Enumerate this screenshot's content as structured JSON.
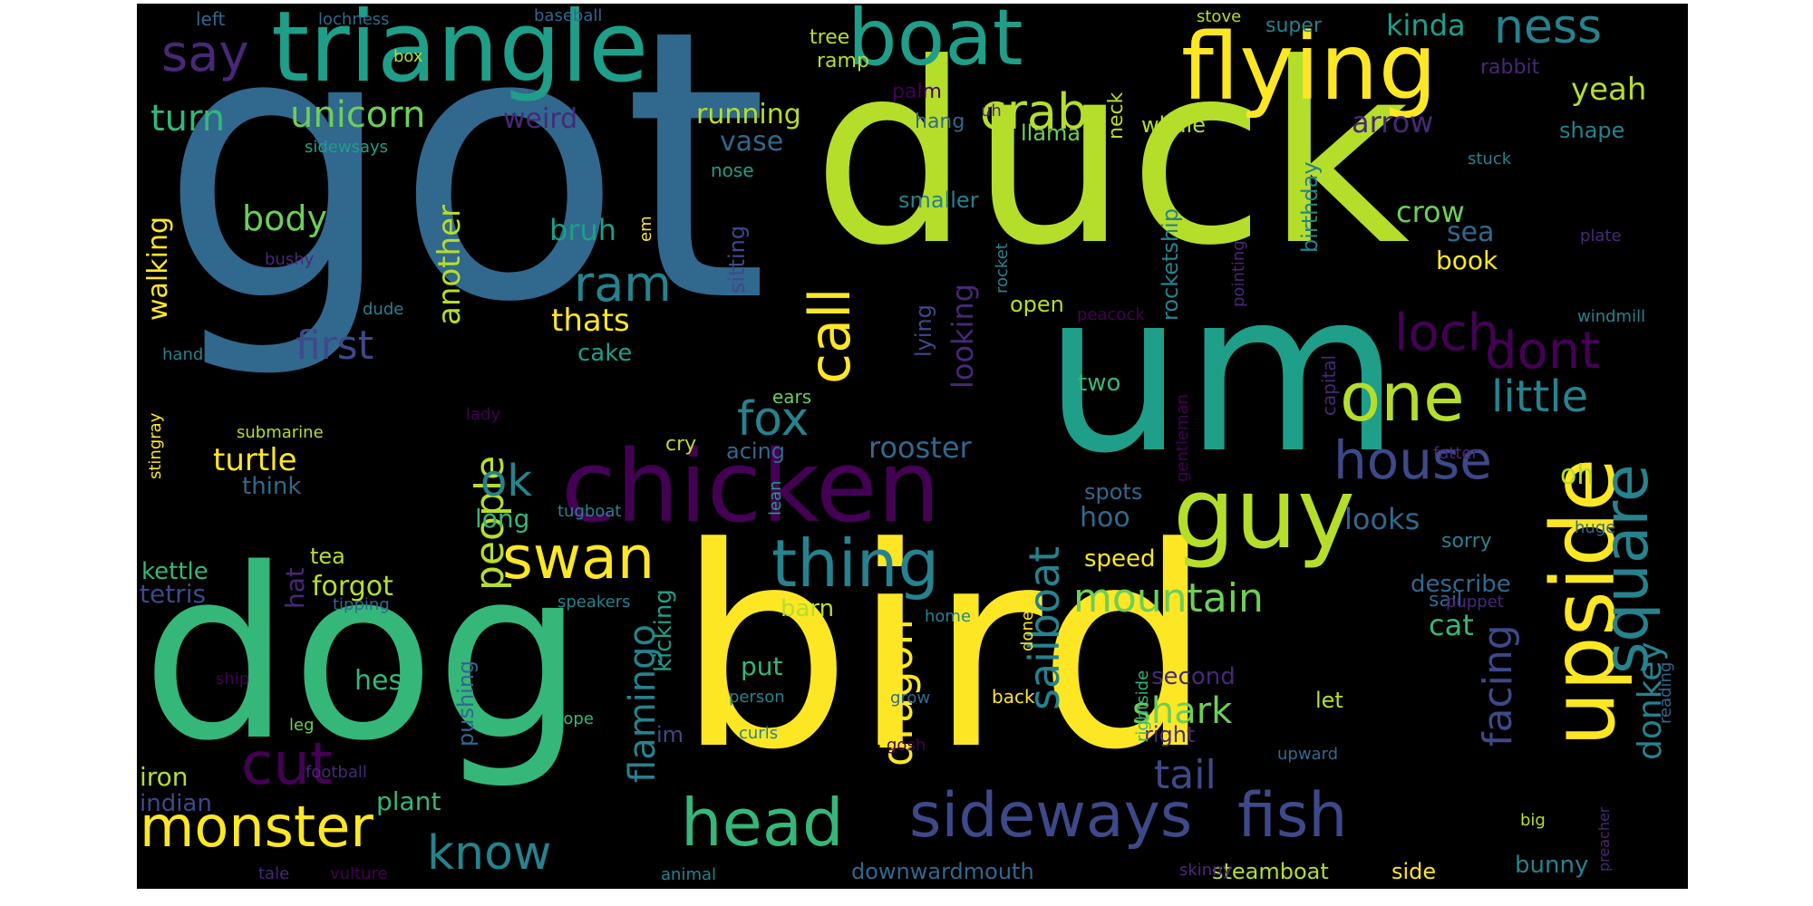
{
  "word_cloud": {
    "background": "#000000",
    "palette": {
      "v1": "#440154",
      "v2": "#482878",
      "v3": "#3e4989",
      "v4": "#31688e",
      "v5": "#26828e",
      "v6": "#1f9e89",
      "v7": "#35b779",
      "v8": "#6ece58",
      "v9": "#b5de2b",
      "v10": "#fde725"
    },
    "words": [
      {
        "text": "got",
        "color": "v4"
      },
      {
        "text": "duck",
        "color": "v9"
      },
      {
        "text": "bird",
        "color": "v10"
      },
      {
        "text": "dog",
        "color": "v7"
      },
      {
        "text": "um",
        "color": "v6"
      },
      {
        "text": "triangle",
        "color": "v6"
      },
      {
        "text": "chicken",
        "color": "v1"
      },
      {
        "text": "flying",
        "color": "v10"
      },
      {
        "text": "upside",
        "color": "v10"
      },
      {
        "text": "boat",
        "color": "v6"
      },
      {
        "text": "guy",
        "color": "v9"
      },
      {
        "text": "sideways",
        "color": "v3"
      },
      {
        "text": "fish",
        "color": "v3"
      },
      {
        "text": "head",
        "color": "v7"
      },
      {
        "text": "monster",
        "color": "v10"
      },
      {
        "text": "swan",
        "color": "v10"
      },
      {
        "text": "thing",
        "color": "v5"
      },
      {
        "text": "cut",
        "color": "v1"
      },
      {
        "text": "square",
        "color": "v5"
      },
      {
        "text": "one",
        "color": "v9"
      },
      {
        "text": "house",
        "color": "v3"
      },
      {
        "text": "call",
        "color": "v10"
      },
      {
        "text": "fox",
        "color": "v5"
      },
      {
        "text": "ram",
        "color": "v5"
      },
      {
        "text": "say",
        "color": "v2"
      },
      {
        "text": "crab",
        "color": "v9"
      },
      {
        "text": "ness",
        "color": "v5"
      },
      {
        "text": "loch",
        "color": "v1"
      },
      {
        "text": "dont",
        "color": "v1"
      },
      {
        "text": "little",
        "color": "v5"
      },
      {
        "text": "unicorn",
        "color": "v8"
      },
      {
        "text": "turn",
        "color": "v7"
      },
      {
        "text": "first",
        "color": "v3"
      },
      {
        "text": "know",
        "color": "v5"
      },
      {
        "text": "mountain",
        "color": "v8"
      },
      {
        "text": "sailboat",
        "color": "v5"
      },
      {
        "text": "dragon",
        "color": "v10"
      },
      {
        "text": "flamingo",
        "color": "v5"
      },
      {
        "text": "people",
        "color": "v9"
      },
      {
        "text": "tail",
        "color": "v3"
      },
      {
        "text": "shark",
        "color": "v8"
      },
      {
        "text": "facing",
        "color": "v3"
      },
      {
        "text": "donkey",
        "color": "v5"
      },
      {
        "text": "ok",
        "color": "v5"
      },
      {
        "text": "body",
        "color": "v8"
      },
      {
        "text": "thats",
        "color": "v10"
      },
      {
        "text": "turtle",
        "color": "v10"
      },
      {
        "text": "yeah",
        "color": "v9"
      },
      {
        "text": "kinda",
        "color": "v6"
      },
      {
        "text": "arrow",
        "color": "v2"
      },
      {
        "text": "running",
        "color": "v9"
      },
      {
        "text": "weird",
        "color": "v2"
      },
      {
        "text": "vase",
        "color": "v4"
      },
      {
        "text": "crow",
        "color": "v8"
      },
      {
        "text": "sea",
        "color": "v4"
      },
      {
        "text": "book",
        "color": "v10"
      },
      {
        "text": "bruh",
        "color": "v6"
      },
      {
        "text": "another",
        "color": "v9"
      },
      {
        "text": "looking",
        "color": "v2"
      },
      {
        "text": "walking",
        "color": "v10"
      },
      {
        "text": "rooster",
        "color": "v4"
      },
      {
        "text": "looks",
        "color": "v4"
      },
      {
        "text": "oh",
        "color": "v9"
      },
      {
        "text": "hoo",
        "color": "v4"
      },
      {
        "text": "cat",
        "color": "v7"
      },
      {
        "text": "hes",
        "color": "v7"
      },
      {
        "text": "plant",
        "color": "v7"
      },
      {
        "text": "forgot",
        "color": "v9"
      },
      {
        "text": "hat",
        "color": "v2"
      },
      {
        "text": "tetris",
        "color": "v3"
      },
      {
        "text": "kettle",
        "color": "v7"
      },
      {
        "text": "tea",
        "color": "v9"
      },
      {
        "text": "iron",
        "color": "v9"
      },
      {
        "text": "indian",
        "color": "v3"
      },
      {
        "text": "cake",
        "color": "v6"
      },
      {
        "text": "think",
        "color": "v4"
      },
      {
        "text": "long",
        "color": "v7"
      },
      {
        "text": "cry",
        "color": "v9"
      },
      {
        "text": "acing",
        "color": "v4"
      },
      {
        "text": "spots",
        "color": "v4"
      },
      {
        "text": "speed",
        "color": "v10"
      },
      {
        "text": "barn",
        "color": "v9"
      },
      {
        "text": "put",
        "color": "v7"
      },
      {
        "text": "kicking",
        "color": "v6"
      },
      {
        "text": "pushing",
        "color": "v4"
      },
      {
        "text": "im",
        "color": "v3"
      },
      {
        "text": "describe",
        "color": "v4"
      },
      {
        "text": "sail",
        "color": "v4"
      },
      {
        "text": "second",
        "color": "v2"
      },
      {
        "text": "right",
        "color": "v2"
      },
      {
        "text": "let",
        "color": "v9"
      },
      {
        "text": "bunny",
        "color": "v5"
      },
      {
        "text": "sorry",
        "color": "v5"
      },
      {
        "text": "whale",
        "color": "v9"
      },
      {
        "text": "llama",
        "color": "v8"
      },
      {
        "text": "birthday",
        "color": "v5"
      },
      {
        "text": "rocketship",
        "color": "v5"
      },
      {
        "text": "smaller",
        "color": "v5"
      },
      {
        "text": "open",
        "color": "v9"
      },
      {
        "text": "two",
        "color": "v7"
      },
      {
        "text": "lying",
        "color": "v3"
      },
      {
        "text": "sitting",
        "color": "v3"
      },
      {
        "text": "shape",
        "color": "v5"
      },
      {
        "text": "hang",
        "color": "v4"
      },
      {
        "text": "palm",
        "color": "v1"
      },
      {
        "text": "ramp",
        "color": "v9"
      },
      {
        "text": "tree",
        "color": "v9"
      },
      {
        "text": "neck",
        "color": "v9"
      },
      {
        "text": "super",
        "color": "v5"
      },
      {
        "text": "rabbit",
        "color": "v2"
      },
      {
        "text": "stuck",
        "color": "v5"
      },
      {
        "text": "nose",
        "color": "v6"
      },
      {
        "text": "left",
        "color": "v4"
      },
      {
        "text": "lochness",
        "color": "v4"
      },
      {
        "text": "baseball",
        "color": "v4"
      },
      {
        "text": "stove",
        "color": "v9"
      },
      {
        "text": "box",
        "color": "v9"
      },
      {
        "text": "uh",
        "color": "v2"
      },
      {
        "text": "sidewsays",
        "color": "v6"
      },
      {
        "text": "em",
        "color": "v10"
      },
      {
        "text": "bushy",
        "color": "v2"
      },
      {
        "text": "dude",
        "color": "v5"
      },
      {
        "text": "hand",
        "color": "v5"
      },
      {
        "text": "submarine",
        "color": "v9"
      },
      {
        "text": "stingray",
        "color": "v10"
      },
      {
        "text": "lady",
        "color": "v1"
      },
      {
        "text": "tugboat",
        "color": "v5"
      },
      {
        "text": "ears",
        "color": "v8"
      },
      {
        "text": "lean",
        "color": "v6"
      },
      {
        "text": "gentleman",
        "color": "v1"
      },
      {
        "text": "capital",
        "color": "v2"
      },
      {
        "text": "pointing",
        "color": "v2"
      },
      {
        "text": "plate",
        "color": "v2"
      },
      {
        "text": "peacock",
        "color": "v1"
      },
      {
        "text": "windmill",
        "color": "v5"
      },
      {
        "text": "rocket",
        "color": "v5"
      },
      {
        "text": "fatter",
        "color": "v2"
      },
      {
        "text": "huge",
        "color": "v4"
      },
      {
        "text": "puppet",
        "color": "v2"
      },
      {
        "text": "reading",
        "color": "v4"
      },
      {
        "text": "home",
        "color": "v5"
      },
      {
        "text": "done",
        "color": "v10"
      },
      {
        "text": "back",
        "color": "v10"
      },
      {
        "text": "rightside",
        "color": "v7"
      },
      {
        "text": "gosh",
        "color": "v1"
      },
      {
        "text": "grow",
        "color": "v4"
      },
      {
        "text": "person",
        "color": "v5"
      },
      {
        "text": "curls",
        "color": "v5"
      },
      {
        "text": "slope",
        "color": "v7"
      },
      {
        "text": "upward",
        "color": "v4"
      },
      {
        "text": "tipping",
        "color": "v4"
      },
      {
        "text": "speakers",
        "color": "v5"
      },
      {
        "text": "ship",
        "color": "v1"
      },
      {
        "text": "leg",
        "color": "v8"
      },
      {
        "text": "football",
        "color": "v2"
      },
      {
        "text": "tale",
        "color": "v2"
      },
      {
        "text": "vulture",
        "color": "v1"
      },
      {
        "text": "animal",
        "color": "v5"
      },
      {
        "text": "downwardmouth",
        "color": "v4"
      },
      {
        "text": "steamboat",
        "color": "v9"
      },
      {
        "text": "side",
        "color": "v10"
      },
      {
        "text": "skinny",
        "color": "v2"
      },
      {
        "text": "big",
        "color": "v9"
      },
      {
        "text": "preacher",
        "color": "v2"
      }
    ]
  }
}
